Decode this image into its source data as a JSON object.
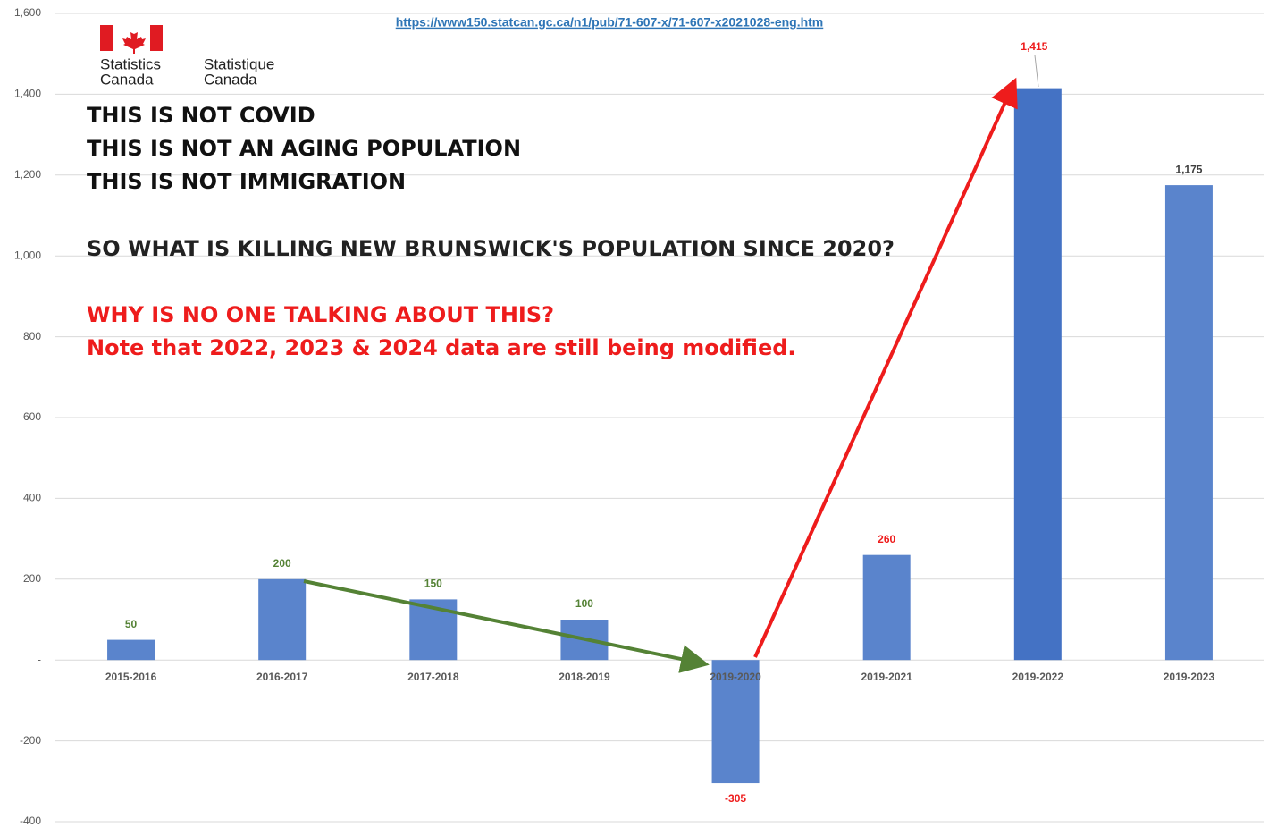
{
  "chart_data": {
    "type": "bar",
    "url": "https://www150.statcan.gc.ca/n1/pub/71-607-x/71-607-x2021028-eng.htm",
    "logo": {
      "en": [
        "Statistics",
        "Canada"
      ],
      "fr": [
        "Statistique",
        "Canada"
      ]
    },
    "annotations": [
      {
        "text": "THIS IS NOT COVID",
        "color": "#111111"
      },
      {
        "text": "THIS IS NOT AN AGING POPULATION",
        "color": "#111111"
      },
      {
        "text": "THIS IS NOT IMMIGRATION",
        "color": "#111111"
      },
      {
        "text": "SO WHAT IS KILLING NEW BRUNSWICK'S POPULATION SINCE 2020?",
        "color": "#222222"
      },
      {
        "text": "WHY IS NO ONE TALKING ABOUT THIS?",
        "color": "#ee1c1c"
      },
      {
        "text": "Note that 2022, 2023 & 2024 data are still being modified.",
        "color": "#ee1c1c"
      }
    ],
    "categories": [
      "2015-2016",
      "2016-2017",
      "2017-2018",
      "2018-2019",
      "2019-2020",
      "2019-2021",
      "2019-2022",
      "2019-2023"
    ],
    "values": [
      50,
      200,
      150,
      100,
      -305,
      260,
      1415,
      1175
    ],
    "value_labels": [
      "50",
      "200",
      "150",
      "100",
      "-305",
      "260",
      "1,415",
      "1,175"
    ],
    "colors": [
      "#5a84cc",
      "#5a84cc",
      "#5a84cc",
      "#5a84cc",
      "#5a84cc",
      "#5a84cc",
      "#4472c4",
      "#5a84cc"
    ],
    "label_colors": [
      "#548235",
      "#548235",
      "#548235",
      "#548235",
      "#ee1c1c",
      "#ee1c1c",
      "#ee1c1c",
      "#404040"
    ],
    "ylim": [
      -400,
      1600
    ],
    "yticks": [
      {
        "value": -400,
        "label": "-400"
      },
      {
        "value": -200,
        "label": "-200"
      },
      {
        "value": 0,
        "label": "-"
      },
      200,
      400,
      600,
      800,
      {
        "value": 1000,
        "label": "1,000"
      },
      {
        "value": 1200,
        "label": "1,200"
      },
      {
        "value": 1400,
        "label": "1,400"
      },
      {
        "value": 1600,
        "label": "1,600"
      }
    ],
    "grid": true
  }
}
